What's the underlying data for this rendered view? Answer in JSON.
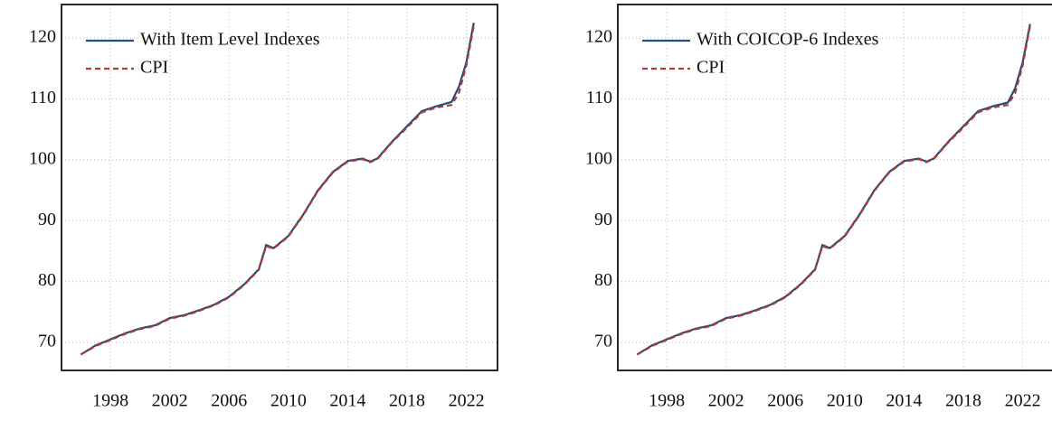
{
  "chart_data": [
    {
      "type": "line",
      "x": [
        1996,
        1997,
        1998,
        1999,
        2000,
        2001,
        2002,
        2003,
        2004,
        2005,
        2006,
        2007,
        2008,
        2008.5,
        2009,
        2010,
        2011,
        2012,
        2013,
        2014,
        2015,
        2015.5,
        2016,
        2017,
        2018,
        2019,
        2020,
        2021,
        2021.5,
        2022,
        2022.5
      ],
      "series": [
        {
          "name": "With Item Level Indexes",
          "color": "#1f4e79",
          "linestyle": "solid",
          "values": [
            68,
            69.5,
            70.5,
            71.5,
            72.3,
            72.8,
            74,
            74.5,
            75.3,
            76.2,
            77.5,
            79.5,
            82,
            86,
            85.5,
            87.5,
            91,
            95,
            98,
            99.8,
            100.2,
            99.7,
            100.2,
            103,
            105.5,
            108,
            108.8,
            109.5,
            112,
            116,
            122.5
          ]
        },
        {
          "name": "CPI",
          "color": "#b03a3a",
          "linestyle": "dashed",
          "values": [
            68,
            69.4,
            70.4,
            71.4,
            72.2,
            72.7,
            73.9,
            74.4,
            75.2,
            76.1,
            77.4,
            79.4,
            81.9,
            85.8,
            85.4,
            87.4,
            90.9,
            94.9,
            97.9,
            99.7,
            100.1,
            99.6,
            100.1,
            102.9,
            105.3,
            107.8,
            108.6,
            109,
            111,
            115.5,
            122
          ]
        }
      ],
      "xlim": [
        1994.7,
        2024.1
      ],
      "xticks": [
        1998,
        2002,
        2006,
        2010,
        2014,
        2018,
        2022
      ],
      "ylim": [
        65.4,
        125.5
      ],
      "yticks": [
        70,
        80,
        90,
        100,
        110,
        120
      ],
      "grid": true
    },
    {
      "type": "line",
      "x": [
        1996,
        1997,
        1998,
        1999,
        2000,
        2001,
        2002,
        2003,
        2004,
        2005,
        2006,
        2007,
        2008,
        2008.5,
        2009,
        2010,
        2011,
        2012,
        2013,
        2014,
        2015,
        2015.5,
        2016,
        2017,
        2018,
        2019,
        2020,
        2021,
        2021.5,
        2022,
        2022.5
      ],
      "series": [
        {
          "name": "With COICOP-6 Indexes",
          "color": "#1f4e79",
          "linestyle": "solid",
          "values": [
            68,
            69.5,
            70.5,
            71.5,
            72.3,
            72.8,
            74,
            74.5,
            75.3,
            76.2,
            77.5,
            79.5,
            82,
            86,
            85.5,
            87.5,
            91,
            95,
            98,
            99.8,
            100.2,
            99.7,
            100.2,
            103,
            105.5,
            108,
            108.8,
            109.4,
            111.8,
            116,
            122.3
          ]
        },
        {
          "name": "CPI",
          "color": "#b03a3a",
          "linestyle": "dashed",
          "values": [
            68,
            69.4,
            70.4,
            71.4,
            72.2,
            72.7,
            73.9,
            74.4,
            75.2,
            76.1,
            77.4,
            79.4,
            81.9,
            85.8,
            85.4,
            87.4,
            90.9,
            94.9,
            97.9,
            99.7,
            100.1,
            99.6,
            100.1,
            102.9,
            105.3,
            107.8,
            108.6,
            109,
            111,
            115.5,
            122
          ]
        }
      ],
      "xlim": [
        1994.7,
        2024.1
      ],
      "xticks": [
        1998,
        2002,
        2006,
        2010,
        2014,
        2018,
        2022
      ],
      "ylim": [
        65.4,
        125.5
      ],
      "yticks": [
        70,
        80,
        90,
        100,
        110,
        120
      ],
      "grid": true
    }
  ]
}
